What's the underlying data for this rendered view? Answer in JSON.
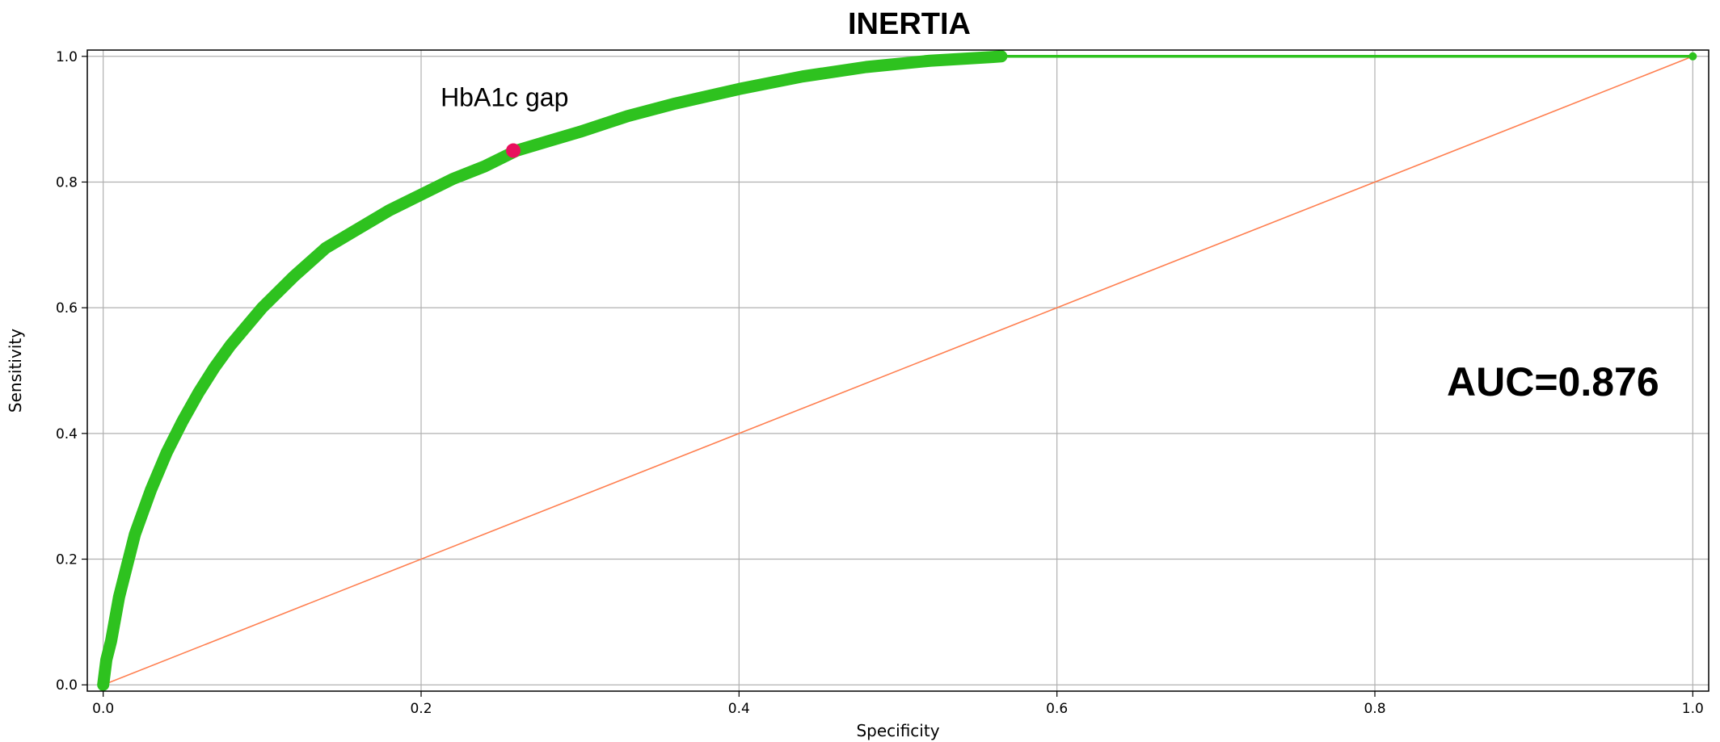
{
  "chart_data": {
    "type": "line",
    "title": "INERTIA",
    "xlabel": "Specificity",
    "ylabel": "Sensitivity",
    "xlim": [
      -0.01,
      1.01
    ],
    "ylim": [
      -0.01,
      1.01
    ],
    "xticks": [
      "0.0",
      "0.2",
      "0.4",
      "0.6",
      "0.8",
      "1.0"
    ],
    "yticks": [
      "0.0",
      "0.2",
      "0.4",
      "0.6",
      "0.8",
      "1.0"
    ],
    "grid": true,
    "colors": {
      "roc": "#2ec21f",
      "diagonal": "#ff7f50",
      "marker": "#e8105e",
      "grid": "#b0b0b0"
    },
    "series": [
      {
        "x": [
          0,
          0.002,
          0.005,
          0.01,
          0.02,
          0.03,
          0.04,
          0.05,
          0.06,
          0.07,
          0.08,
          0.09,
          0.1,
          0.12,
          0.14,
          0.16,
          0.18,
          0.2,
          0.22,
          0.24,
          0.26,
          0.28,
          0.3,
          0.33,
          0.36,
          0.4,
          0.44,
          0.48,
          0.52,
          0.56,
          0.565,
          1.0
        ],
        "y": [
          0,
          0.04,
          0.07,
          0.14,
          0.24,
          0.31,
          0.37,
          0.42,
          0.465,
          0.505,
          0.54,
          0.57,
          0.6,
          0.65,
          0.695,
          0.725,
          0.755,
          0.78,
          0.805,
          0.825,
          0.85,
          0.865,
          0.88,
          0.905,
          0.925,
          0.948,
          0.968,
          0.983,
          0.993,
          0.999,
          1.0,
          1.0
        ]
      },
      {
        "x": [
          0,
          1
        ],
        "y": [
          0,
          1
        ]
      }
    ],
    "marker_point": {
      "x": 0.258,
      "y": 0.85,
      "label": "HbA1c gap"
    },
    "auc_text": "AUC=0.876"
  }
}
